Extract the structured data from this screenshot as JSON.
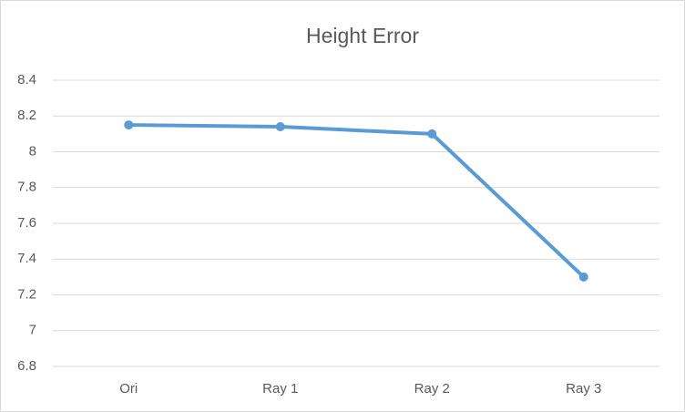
{
  "chart_data": {
    "type": "line",
    "title": "Height Error",
    "categories": [
      "Ori",
      "Ray 1",
      "Ray 2",
      "Ray 3"
    ],
    "series": [
      {
        "name": "Height Error",
        "color": "#5b9bd5",
        "values": [
          8.15,
          8.14,
          8.1,
          7.3
        ]
      }
    ],
    "ylim": [
      6.8,
      8.4
    ],
    "yticks": [
      6.8,
      7,
      7.2,
      7.4,
      7.6,
      7.8,
      8,
      8.2,
      8.4
    ],
    "grid": true
  }
}
